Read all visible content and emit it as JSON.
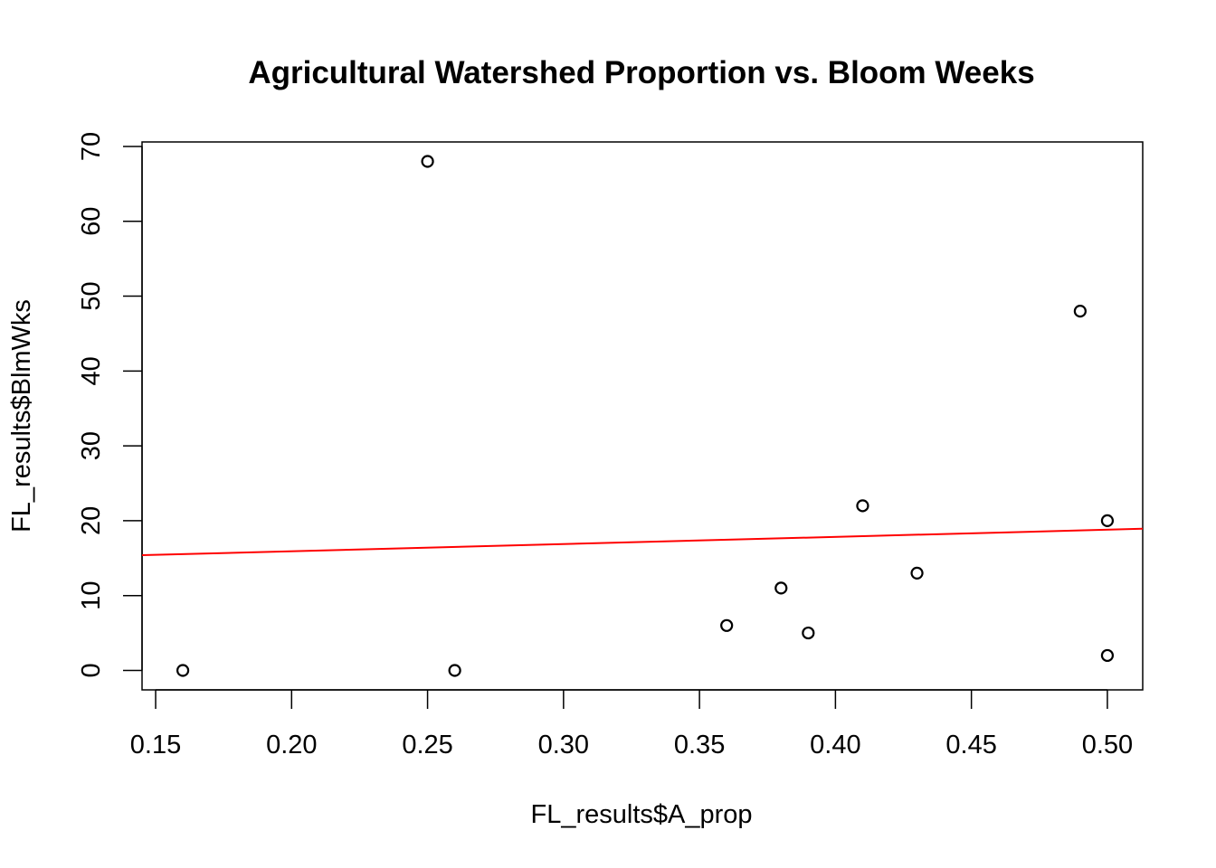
{
  "chart_data": {
    "type": "scatter",
    "title": "Agricultural Watershed Proportion vs. Bloom Weeks",
    "xlabel": "FL_results$A_prop",
    "ylabel": "FL_results$BlmWks",
    "xlim": [
      0.145,
      0.513
    ],
    "ylim": [
      -2.6,
      70.6
    ],
    "xticks": [
      "0.15",
      "0.20",
      "0.25",
      "0.30",
      "0.35",
      "0.40",
      "0.45",
      "0.50"
    ],
    "yticks": [
      "0",
      "10",
      "20",
      "30",
      "40",
      "50",
      "60",
      "70"
    ],
    "points": [
      {
        "x": 0.16,
        "y": 0
      },
      {
        "x": 0.25,
        "y": 68
      },
      {
        "x": 0.26,
        "y": 0
      },
      {
        "x": 0.36,
        "y": 6
      },
      {
        "x": 0.38,
        "y": 11
      },
      {
        "x": 0.39,
        "y": 5
      },
      {
        "x": 0.41,
        "y": 22
      },
      {
        "x": 0.43,
        "y": 13
      },
      {
        "x": 0.49,
        "y": 48
      },
      {
        "x": 0.5,
        "y": 20
      },
      {
        "x": 0.5,
        "y": 2
      }
    ],
    "fit_line": {
      "intercept": 14.0,
      "slope": 9.6,
      "color": "#ff0000"
    },
    "point_style": "open-circle",
    "grid": false,
    "legend": "none"
  }
}
